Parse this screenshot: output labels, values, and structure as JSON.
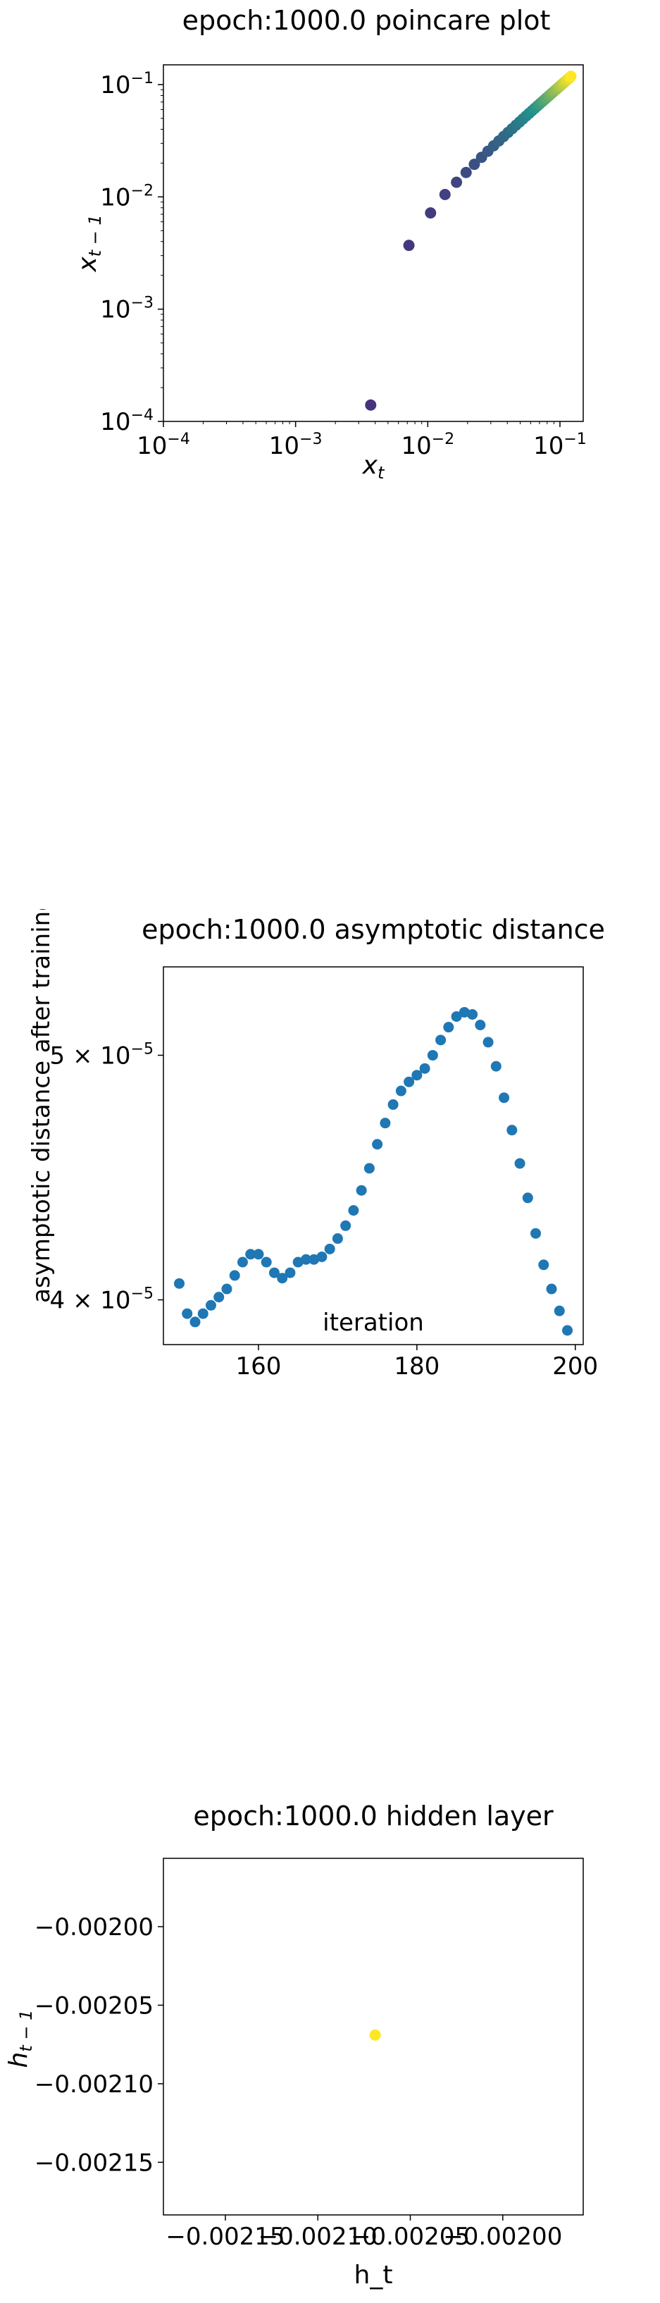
{
  "chart_data": [
    {
      "type": "scatter",
      "title": "epoch:1000.0 poincare plot",
      "xlabel": "x_t",
      "ylabel": "x_{t-1}",
      "xscale": "log",
      "yscale": "log",
      "xlim": [
        0.0001,
        0.15
      ],
      "ylim": [
        0.0001,
        0.15
      ],
      "x_ticks": [
        "10^-4",
        "10^-3",
        "10^-2",
        "10^-1"
      ],
      "y_ticks": [
        "10^-4",
        "10^-3",
        "10^-2",
        "10^-1"
      ],
      "colormap": "viridis",
      "colors": {
        "start": "#46327e",
        "mid": "#21918c",
        "end": "#fde725"
      },
      "points": [
        {
          "x": 0.0037,
          "y": 0.00014
        },
        {
          "x": 0.0072,
          "y": 0.0037
        },
        {
          "x": 0.0105,
          "y": 0.0072
        },
        {
          "x": 0.0135,
          "y": 0.0105
        },
        {
          "x": 0.0165,
          "y": 0.0135
        },
        {
          "x": 0.0195,
          "y": 0.0165
        },
        {
          "x": 0.0225,
          "y": 0.0195
        },
        {
          "x": 0.0255,
          "y": 0.0225
        },
        {
          "x": 0.0285,
          "y": 0.0255
        },
        {
          "x": 0.0315,
          "y": 0.0285
        },
        {
          "x": 0.0345,
          "y": 0.0315
        },
        {
          "x": 0.0375,
          "y": 0.0345
        },
        {
          "x": 0.0405,
          "y": 0.0375
        },
        {
          "x": 0.0435,
          "y": 0.0405
        },
        {
          "x": 0.0465,
          "y": 0.0435
        },
        {
          "x": 0.0495,
          "y": 0.0465
        },
        {
          "x": 0.0525,
          "y": 0.0495
        },
        {
          "x": 0.0555,
          "y": 0.0525
        },
        {
          "x": 0.0585,
          "y": 0.0555
        },
        {
          "x": 0.0615,
          "y": 0.0585
        },
        {
          "x": 0.0645,
          "y": 0.0615
        },
        {
          "x": 0.0675,
          "y": 0.0645
        },
        {
          "x": 0.0705,
          "y": 0.0675
        },
        {
          "x": 0.0735,
          "y": 0.0705
        },
        {
          "x": 0.0765,
          "y": 0.0735
        },
        {
          "x": 0.0795,
          "y": 0.0765
        },
        {
          "x": 0.0825,
          "y": 0.0795
        },
        {
          "x": 0.0855,
          "y": 0.0825
        },
        {
          "x": 0.0885,
          "y": 0.0855
        },
        {
          "x": 0.0915,
          "y": 0.0885
        },
        {
          "x": 0.0945,
          "y": 0.0915
        },
        {
          "x": 0.0975,
          "y": 0.0945
        },
        {
          "x": 0.1005,
          "y": 0.0975
        },
        {
          "x": 0.1035,
          "y": 0.1005
        },
        {
          "x": 0.1065,
          "y": 0.1035
        },
        {
          "x": 0.1095,
          "y": 0.1065
        },
        {
          "x": 0.1125,
          "y": 0.1095
        },
        {
          "x": 0.1155,
          "y": 0.1125
        },
        {
          "x": 0.1185,
          "y": 0.1155
        },
        {
          "x": 0.121,
          "y": 0.1185
        }
      ]
    },
    {
      "type": "scatter",
      "title": "epoch:1000.0 asymptotic distance",
      "xlabel": "iteration",
      "ylabel": "asymptotic distance after training",
      "yscale": "log",
      "xlim": [
        148,
        201
      ],
      "ylim": [
        3.84e-05,
        5.42e-05
      ],
      "x_ticks": [
        "160",
        "180",
        "200"
      ],
      "y_ticks": [
        "4 × 10^-5",
        "5 × 10^-5"
      ],
      "color": "#1f77b4",
      "x": [
        150,
        151,
        152,
        153,
        154,
        155,
        156,
        157,
        158,
        159,
        160,
        161,
        162,
        163,
        164,
        165,
        166,
        167,
        168,
        169,
        170,
        171,
        172,
        173,
        174,
        175,
        176,
        177,
        178,
        179,
        180,
        181,
        182,
        183,
        184,
        185,
        186,
        187,
        188,
        189,
        190,
        191,
        192,
        193,
        194,
        195,
        196,
        197,
        198,
        199
      ],
      "y": [
        4.06e-05,
        3.95e-05,
        3.92e-05,
        3.95e-05,
        3.98e-05,
        4.01e-05,
        4.04e-05,
        4.09e-05,
        4.14e-05,
        4.17e-05,
        4.17e-05,
        4.14e-05,
        4.1e-05,
        4.08e-05,
        4.1e-05,
        4.14e-05,
        4.15e-05,
        4.15e-05,
        4.16e-05,
        4.19e-05,
        4.23e-05,
        4.28e-05,
        4.34e-05,
        4.42e-05,
        4.51e-05,
        4.61e-05,
        4.7e-05,
        4.78e-05,
        4.84e-05,
        4.88e-05,
        4.91e-05,
        4.94e-05,
        5e-05,
        5.07e-05,
        5.13e-05,
        5.18e-05,
        5.2e-05,
        5.19e-05,
        5.14e-05,
        5.06e-05,
        4.95e-05,
        4.81e-05,
        4.67e-05,
        4.53e-05,
        4.39e-05,
        4.25e-05,
        4.13e-05,
        4.04e-05,
        3.96e-05,
        3.89e-05
      ]
    },
    {
      "type": "scatter",
      "title": "epoch:1000.0 hidden layer",
      "xlabel": "h_t",
      "ylabel": "h_{t-1}",
      "xlim": [
        -0.0021835,
        -0.0019565
      ],
      "ylim": [
        -0.0021835,
        -0.0019565
      ],
      "x_ticks": [
        "−0.00215",
        "−0.00210",
        "−0.00205",
        "−0.00200"
      ],
      "y_ticks": [
        "−0.00200",
        "−0.00205",
        "−0.00210",
        "−0.00215"
      ],
      "color": "#fde725",
      "points": [
        {
          "x": -0.002069,
          "y": -0.002069
        }
      ]
    }
  ]
}
